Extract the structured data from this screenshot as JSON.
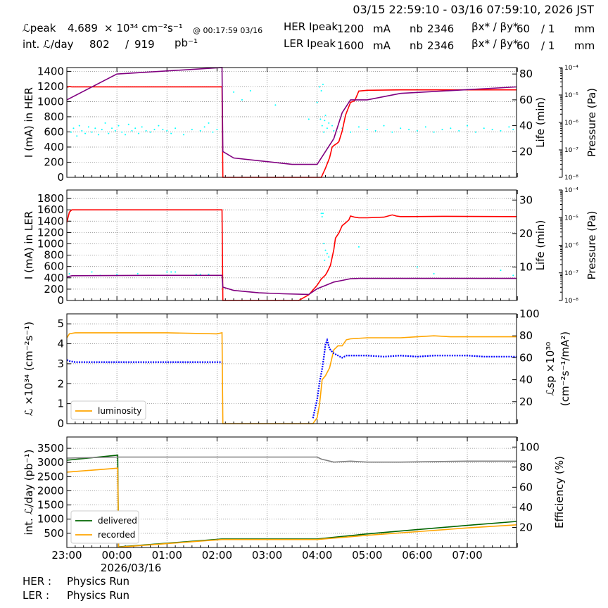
{
  "header": {
    "date_range": "03/15 22:59:10 - 03/16 07:59:10, 2026 JST",
    "lpeak_label": "ℒpeak",
    "lpeak_value": "4.689",
    "lpeak_unit": "× 10³⁴ cm⁻²s⁻¹",
    "lpeak_time": "@ 00:17:59 03/16",
    "intL_label": "int. ℒ/day",
    "intL_value": "802",
    "intL_sep": "/",
    "intL_total": "919",
    "intL_unit": "pb⁻¹",
    "her_label": "HER Ipeak",
    "her_value": "1200",
    "her_unit": "mA",
    "her_nb_label": "nb",
    "her_nb": "2346",
    "her_beta_label": "βx* / βy*",
    "her_beta_x": "60",
    "her_beta_y": "/ 1",
    "her_beta_unit": "mm",
    "ler_label": "LER Ipeak",
    "ler_value": "1600",
    "ler_unit": "mA",
    "ler_nb_label": "nb",
    "ler_nb": "2346",
    "ler_beta_label": "βx* / βy*",
    "ler_beta_x": "60",
    "ler_beta_y": "/ 1",
    "ler_beta_unit": "mm"
  },
  "footer": {
    "her_label": "HER :",
    "her_status": "Physics Run",
    "ler_label": "LER :",
    "ler_status": "Physics Run"
  },
  "colors": {
    "current": "#ff0000",
    "pressure": "#800080",
    "life": "#00ffff",
    "luminosity": "#ffa500",
    "specific": "#0000ff",
    "delivered": "#006400",
    "recorded": "#ffa500",
    "efficiency": "#808080"
  },
  "chart_data": [
    {
      "type": "line",
      "name": "her",
      "ylabel": "I (mA) in HER",
      "y2label": "Life (min)",
      "y3label": "Pressure (Pa)",
      "ylim": [
        0,
        1450
      ],
      "yticks": [
        0,
        200,
        400,
        600,
        800,
        1000,
        1200,
        1400
      ],
      "y2lim": [
        0,
        85
      ],
      "y2ticks": [
        20,
        40,
        60,
        80
      ],
      "y3ticks": [
        "10⁻⁸",
        "10⁻⁷",
        "10⁻⁶",
        "10⁻⁵",
        "10⁻⁴"
      ],
      "xlim": [
        0,
        539
      ],
      "grid": true,
      "series": [
        {
          "role": "current",
          "x": [
            0,
            3,
            6,
            180,
            186,
            187,
            200,
            270,
            275,
            290,
            300,
            305,
            310,
            315,
            318,
            320,
            324,
            326,
            330,
            334,
            335,
            340,
            345,
            350,
            360,
            400,
            539
          ],
          "y": [
            1190,
            1198,
            1195,
            1195,
            1196,
            0,
            0,
            0,
            0,
            0,
            0,
            0,
            120,
            260,
            400,
            420,
            450,
            470,
            610,
            820,
            850,
            990,
            1010,
            1140,
            1150,
            1155,
            1155
          ]
        },
        {
          "role": "pressure",
          "x": [
            0,
            60,
            186,
            187,
            200,
            270,
            300,
            310,
            320,
            330,
            340,
            360,
            400,
            539
          ],
          "y": [
            60,
            80,
            85,
            20,
            15,
            10,
            10,
            20,
            30,
            50,
            60,
            60,
            65,
            70
          ]
        }
      ],
      "scatter_y2": [
        {
          "x": [
            5,
            8,
            12,
            15,
            18,
            22,
            26,
            30,
            34,
            38,
            42,
            46,
            50,
            54,
            58,
            62,
            66,
            70,
            74,
            78,
            82,
            86,
            90,
            95,
            100,
            105,
            110,
            115,
            120,
            125,
            130,
            140,
            150,
            160,
            165,
            170,
            175,
            180
          ],
          "y": [
            35,
            38,
            32,
            40,
            36,
            34,
            39,
            35,
            38,
            33,
            37,
            42,
            34,
            38,
            36,
            40,
            35,
            33,
            41,
            36,
            38,
            34,
            39,
            36,
            35,
            37,
            40,
            37,
            36,
            34,
            38,
            33,
            37,
            36,
            39,
            42,
            35,
            37
          ]
        },
        {
          "x": [
            300,
            303,
            304,
            305,
            306,
            307,
            308,
            309,
            310,
            312,
            314,
            318
          ],
          "y": [
            58,
            70,
            45,
            67,
            40,
            72,
            35,
            44,
            48,
            38,
            42,
            40
          ]
        },
        {
          "x": [
            320,
            330,
            340,
            350,
            360,
            370,
            380,
            390,
            400,
            410,
            420,
            430,
            440,
            450,
            460,
            470,
            480,
            490,
            500,
            510,
            520,
            530,
            535
          ],
          "y": [
            36,
            38,
            35,
            39,
            37,
            36,
            40,
            35,
            38,
            37,
            36,
            39,
            35,
            37,
            38,
            36,
            40,
            35,
            38,
            37,
            36,
            39,
            37
          ]
        },
        {
          "x": [
            200,
            210,
            220,
            250,
            290
          ],
          "y": [
            66,
            60,
            67,
            56,
            45
          ]
        }
      ]
    },
    {
      "type": "line",
      "name": "ler",
      "ylabel": "I (mA) in LER",
      "y2label": "Life (min)",
      "y3label": "Pressure (Pa)",
      "ylim": [
        0,
        1950
      ],
      "yticks": [
        0,
        200,
        400,
        600,
        800,
        1000,
        1200,
        1400,
        1600,
        1800
      ],
      "y2lim": [
        0,
        33
      ],
      "y2ticks": [
        10,
        20,
        30
      ],
      "y3ticks": [
        "10⁻⁸",
        "10⁻⁷",
        "10⁻⁶",
        "10⁻⁵",
        "10⁻⁴"
      ],
      "xlim": [
        0,
        539
      ],
      "grid": true,
      "series": [
        {
          "role": "current",
          "x": [
            0,
            3,
            6,
            180,
            186,
            187,
            200,
            270,
            275,
            278,
            290,
            300,
            305,
            310,
            312,
            316,
            320,
            322,
            326,
            330,
            334,
            338,
            340,
            345,
            350,
            355,
            360,
            380,
            390,
            395,
            400,
            410,
            450,
            539
          ],
          "y": [
            1380,
            1560,
            1600,
            1600,
            1600,
            0,
            0,
            0,
            0,
            0,
            100,
            270,
            380,
            450,
            500,
            620,
            900,
            1100,
            1190,
            1320,
            1370,
            1420,
            1490,
            1470,
            1460,
            1460,
            1460,
            1470,
            1510,
            1490,
            1480,
            1480,
            1485,
            1480
          ]
        },
        {
          "role": "pressure",
          "x": [
            0,
            6,
            100,
            180,
            186,
            187,
            200,
            230,
            260,
            290,
            300,
            310,
            320,
            330,
            340,
            350,
            360,
            539
          ],
          "y": [
            7.0,
            7.4,
            7.5,
            7.5,
            7.5,
            4.0,
            3.0,
            2.3,
            2.0,
            1.8,
            3.5,
            4.5,
            5.5,
            6.0,
            6.5,
            6.6,
            6.6,
            6.6
          ]
        }
      ],
      "scatter_y2": [
        {
          "x": [
            3,
            30,
            40,
            60,
            85,
            120,
            125,
            130,
            155,
            160,
            170
          ],
          "y": [
            8,
            8.5,
            7.5,
            7.8,
            8,
            8.5,
            8.5,
            8.5,
            7.8,
            7.8,
            7.8
          ]
        },
        {
          "x": [
            305,
            306,
            307,
            308,
            309,
            310,
            312,
            314
          ],
          "y": [
            26,
            25,
            26,
            17,
            12,
            15,
            14,
            13
          ]
        },
        {
          "x": [
            350,
            420,
            440,
            520,
            535
          ],
          "y": [
            16,
            10,
            8,
            9,
            7.5
          ]
        }
      ]
    },
    {
      "type": "line",
      "name": "luminosity",
      "ylabel": "ℒ ×10³⁴ (cm⁻²s⁻¹)",
      "y2label": "ℒsp ×10³⁰ (cm⁻²s⁻¹/mA²)",
      "ylim": [
        0,
        5.5
      ],
      "yticks": [
        0,
        1,
        2,
        3,
        4,
        5
      ],
      "y2lim": [
        0,
        100
      ],
      "y2ticks": [
        20,
        40,
        60,
        80,
        100
      ],
      "xlim": [
        0,
        539
      ],
      "grid": true,
      "legend": {
        "position": "bottom-left",
        "entries": [
          "luminosity"
        ]
      },
      "series": [
        {
          "role": "luminosity",
          "name": "luminosity",
          "x": [
            0,
            3,
            10,
            60,
            120,
            180,
            186,
            187,
            290,
            295,
            300,
            303,
            306,
            310,
            315,
            320,
            325,
            330,
            335,
            340,
            360,
            380,
            400,
            420,
            440,
            460,
            480,
            500,
            520,
            539
          ],
          "y": [
            4.3,
            4.5,
            4.55,
            4.55,
            4.55,
            4.5,
            4.55,
            0,
            0,
            0,
            0.3,
            1.0,
            2.2,
            2.4,
            2.8,
            3.7,
            3.9,
            3.9,
            4.2,
            4.25,
            4.3,
            4.3,
            4.3,
            4.35,
            4.4,
            4.35,
            4.35,
            4.35,
            4.35,
            4.35
          ]
        },
        {
          "role": "specific",
          "x": [
            0,
            3,
            10,
            60,
            120,
            180,
            186
          ],
          "y": [
            58,
            57,
            56,
            56,
            56,
            56,
            56
          ]
        },
        {
          "role": "specific",
          "x": [
            295,
            300,
            303,
            306,
            308,
            310,
            312,
            315,
            320,
            325,
            330,
            335,
            340,
            360,
            380,
            400,
            420,
            440,
            460,
            480,
            500,
            520,
            539
          ],
          "y": [
            5,
            22,
            38,
            50,
            60,
            72,
            76,
            68,
            64,
            62,
            60,
            62,
            62,
            62,
            61,
            62,
            61,
            62,
            62,
            62,
            61,
            61,
            61
          ]
        }
      ]
    },
    {
      "type": "line",
      "name": "integrated",
      "ylabel": "int. ℒ/day (pb⁻¹)",
      "y2label": "Efficiency (%)",
      "xlabel": "2026/03/16",
      "ylim": [
        0,
        3900
      ],
      "yticks": [
        500,
        1000,
        1500,
        2000,
        2500,
        3000,
        3500
      ],
      "y2lim": [
        0,
        110
      ],
      "y2ticks": [
        20,
        40,
        60,
        80,
        100
      ],
      "xlim": [
        0,
        539
      ],
      "xticks": [
        0,
        60,
        120,
        180,
        240,
        300,
        360,
        420,
        480
      ],
      "xticklabels": [
        "23:00",
        "00:00",
        "01:00",
        "02:00",
        "03:00",
        "04:00",
        "05:00",
        "06:00",
        "07:00"
      ],
      "grid": true,
      "legend": {
        "position": "bottom-left",
        "entries": [
          "delivered",
          "recorded"
        ]
      },
      "series": [
        {
          "role": "delivered",
          "name": "delivered",
          "x": [
            0,
            61,
            61.5,
            62,
            186,
            300,
            360,
            420,
            480,
            539
          ],
          "y": [
            3080,
            3260,
            1600,
            20,
            300,
            300,
            480,
            630,
            780,
            920
          ]
        },
        {
          "role": "recorded",
          "name": "recorded",
          "x": [
            0,
            61,
            61.5,
            62,
            186,
            300,
            360,
            420,
            480,
            539
          ],
          "y": [
            2660,
            2800,
            1400,
            10,
            280,
            280,
            430,
            560,
            690,
            800
          ]
        },
        {
          "role": "efficiency",
          "axis": "y2",
          "x": [
            0,
            61,
            62,
            186,
            300,
            305,
            320,
            340,
            360,
            400,
            480,
            539
          ],
          "y": [
            89,
            90,
            90,
            90,
            90,
            88,
            85,
            86,
            85,
            85,
            86,
            86
          ]
        }
      ]
    }
  ]
}
